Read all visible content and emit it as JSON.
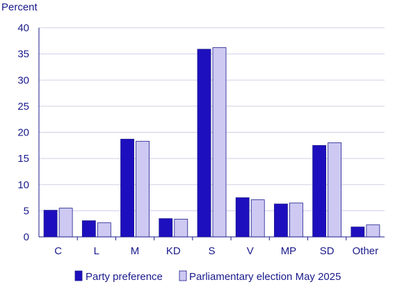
{
  "chart_data": {
    "type": "bar",
    "ylabel": "Percent",
    "ylim": [
      0,
      40
    ],
    "yticks": [
      0,
      5,
      10,
      15,
      20,
      25,
      30,
      35,
      40
    ],
    "grid": true,
    "legend_placement": "bottom",
    "categories": [
      "C",
      "L",
      "M",
      "KD",
      "S",
      "V",
      "MP",
      "SD",
      "Other"
    ],
    "series": [
      {
        "name": "Party preference",
        "color": "#1e0fbe",
        "values": [
          5.1,
          3.1,
          18.7,
          3.5,
          35.9,
          7.5,
          6.3,
          17.5,
          1.9
        ]
      },
      {
        "name": "Parliamentary election May 2025",
        "color": "#cdc9f2",
        "values": [
          5.5,
          2.7,
          18.3,
          3.4,
          36.2,
          7.1,
          6.5,
          18.0,
          2.3
        ]
      }
    ],
    "colors": {
      "text": "#1a1a8c",
      "grid": "#cfcfe8",
      "axis": "#1a1a8c",
      "bar_stroke": "#1a1a8c"
    }
  }
}
